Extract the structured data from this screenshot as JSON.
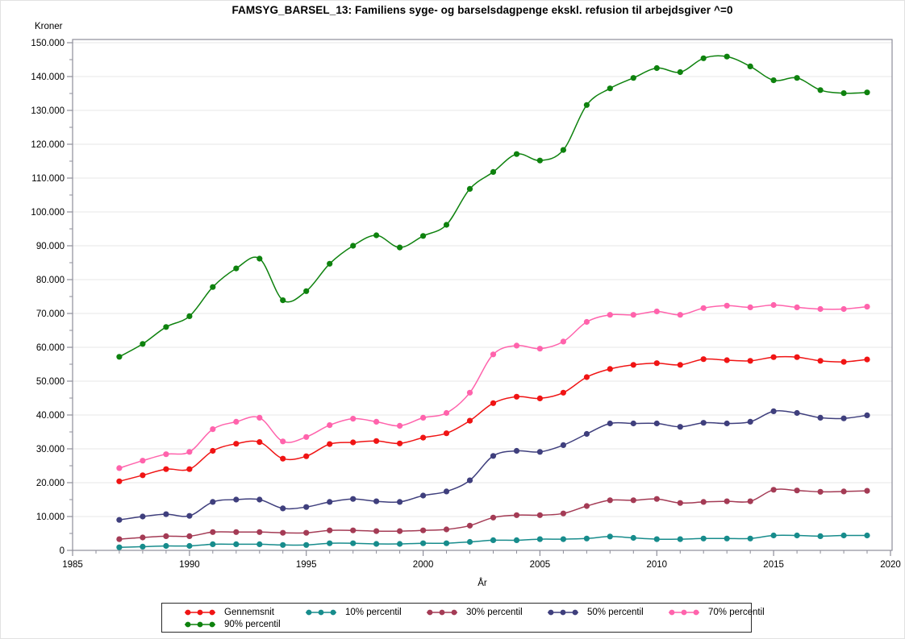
{
  "chart_data": {
    "type": "line",
    "title": "FAMSYG_BARSEL_13: Familiens syge- og barselsdagpenge ekskl. refusion til arbejdsgiver ^=0",
    "xlabel": "År",
    "ylabel": "Kroner",
    "xlim": [
      1985,
      2020
    ],
    "ylim": [
      0,
      150000
    ],
    "grid": "horizontal",
    "legend_position": "bottom",
    "x_tick_values": [
      1985,
      1990,
      1995,
      2000,
      2005,
      2010,
      2015,
      2020
    ],
    "x_tick_labels": [
      "1985",
      "1990",
      "1995",
      "2000",
      "2005",
      "2010",
      "2015",
      "2020"
    ],
    "x_minor_step": 1,
    "y_tick_values": [
      0,
      10000,
      20000,
      30000,
      40000,
      50000,
      60000,
      70000,
      80000,
      90000,
      100000,
      110000,
      120000,
      130000,
      140000,
      150000
    ],
    "y_tick_labels": [
      "0",
      "10.000",
      "20.000",
      "30.000",
      "40.000",
      "50.000",
      "60.000",
      "70.000",
      "80.000",
      "90.000",
      "100.000",
      "110.000",
      "120.000",
      "130.000",
      "140.000",
      "150.000"
    ],
    "y_minor_step": 5000,
    "x": [
      1987,
      1988,
      1989,
      1990,
      1991,
      1992,
      1993,
      1994,
      1995,
      1996,
      1997,
      1998,
      1999,
      2000,
      2001,
      2002,
      2003,
      2004,
      2005,
      2006,
      2007,
      2008,
      2009,
      2010,
      2011,
      2012,
      2013,
      2014,
      2015,
      2016,
      2017,
      2018,
      2019
    ],
    "series": [
      {
        "name": "Gennemsnit",
        "color": "#f01414",
        "values": [
          20400,
          22200,
          24000,
          24000,
          29400,
          31500,
          32000,
          27100,
          27800,
          31400,
          31900,
          32300,
          31600,
          33300,
          34600,
          38300,
          43500,
          45400,
          44900,
          46600,
          51200,
          53600,
          54800,
          55300,
          54800,
          56500,
          56200,
          56000,
          57100,
          57100,
          56000,
          55700,
          56400
        ]
      },
      {
        "name": "10% percentil",
        "color": "#178c8c",
        "values": [
          900,
          1100,
          1300,
          1300,
          1800,
          1800,
          1800,
          1600,
          1600,
          2100,
          2100,
          1900,
          1900,
          2100,
          2100,
          2500,
          3000,
          3000,
          3300,
          3300,
          3500,
          4100,
          3700,
          3300,
          3300,
          3500,
          3500,
          3500,
          4400,
          4400,
          4200,
          4400,
          4400
        ]
      },
      {
        "name": "30% percentil",
        "color": "#a43b55",
        "values": [
          3300,
          3800,
          4200,
          4200,
          5400,
          5400,
          5400,
          5200,
          5200,
          5900,
          5900,
          5700,
          5700,
          5900,
          6200,
          7300,
          9700,
          10400,
          10400,
          10900,
          13100,
          14800,
          14800,
          15200,
          14000,
          14300,
          14500,
          14500,
          17900,
          17700,
          17300,
          17400,
          17600
        ]
      },
      {
        "name": "50% percentil",
        "color": "#3f3f7d",
        "values": [
          9000,
          10000,
          10700,
          10200,
          14300,
          15000,
          15000,
          12400,
          12800,
          14300,
          15200,
          14500,
          14300,
          16200,
          17400,
          20700,
          27900,
          29400,
          29100,
          31100,
          34400,
          37500,
          37500,
          37500,
          36500,
          37700,
          37500,
          38000,
          41100,
          40600,
          39200,
          39000,
          39900
        ]
      },
      {
        "name": "70% percentil",
        "color": "#ff63ac",
        "values": [
          24300,
          26500,
          28400,
          29100,
          35800,
          38000,
          39200,
          32200,
          33500,
          37000,
          38900,
          38000,
          36800,
          39200,
          40600,
          46600,
          57900,
          60500,
          59600,
          61700,
          67500,
          69600,
          69600,
          70600,
          69600,
          71600,
          72300,
          71800,
          72500,
          71800,
          71300,
          71300,
          72000
        ]
      },
      {
        "name": "90% percentil",
        "color": "#0e820e",
        "values": [
          57200,
          61000,
          66000,
          69200,
          77800,
          83300,
          86200,
          73900,
          76600,
          84700,
          90000,
          93100,
          89500,
          92900,
          96200,
          106800,
          111800,
          117100,
          115200,
          118300,
          131600,
          136500,
          139600,
          142500,
          141300,
          145400,
          145900,
          143000,
          138900,
          139600,
          136000,
          135100,
          135300
        ]
      }
    ],
    "style": {
      "frame_color": "#8e8e9a",
      "gridline_color": "#e7e7e7",
      "background": "#ffffff"
    }
  }
}
